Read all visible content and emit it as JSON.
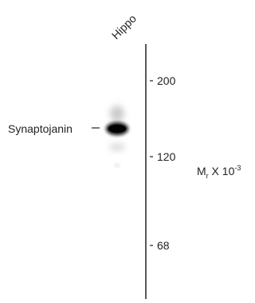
{
  "lane_label": "Hippo",
  "band_label": "Synaptojanin",
  "markers": [
    "200",
    "120",
    "68"
  ],
  "unit": {
    "main": "M",
    "sub": "r",
    "mid": " X 10",
    "sup": "-3"
  }
}
